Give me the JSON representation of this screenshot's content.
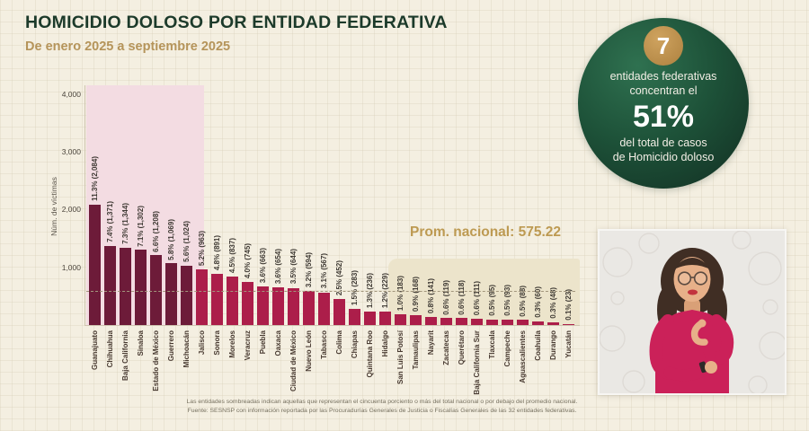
{
  "title": "HOMICIDIO DOLOSO POR ENTIDAD FEDERATIVA",
  "subtitle": "De enero 2025 a septiembre 2025",
  "avg_label": "Prom. nacional: 575.22",
  "badge": {
    "number": "7",
    "line1": "entidades federativas",
    "line2": "concentran el",
    "pct": "51%",
    "line3": "del total de casos",
    "line4": "de Homicidio doloso"
  },
  "yticks": [
    "4,000",
    "3,000",
    "2,000",
    "1,000"
  ],
  "footnote1": "Las entidades sombreadas indican aquellas que representan el cincuenta porciento o más del total nacional o por debajo del promedio nacional.",
  "footnote2": "Fuente: SESNSP con información reportada por las Procuradurías Generales de Justicia o Fiscalías Generales de las 32 entidades federativas.",
  "colors": {
    "bar_shaded": "#6d1b39",
    "bar_normal": "#ac1e4a",
    "shade_pink": "#f3dce2",
    "shade_beige": "#ece4cb",
    "title_green": "#1c3a2a",
    "gold": "#bd9a52",
    "badge_green_dark": "#122e22",
    "interpreter_magenta": "#cb2159"
  },
  "chart_data": {
    "type": "bar",
    "title": "Homicidio doloso por entidad federativa",
    "period": "enero 2025 a septiembre 2025",
    "ylabel": "Núm. de víctimas",
    "ylim": [
      0,
      4000
    ],
    "ytick_values": [
      4000,
      3000,
      2000,
      1000
    ],
    "national_average": 575.22,
    "shaded_top_count": 7,
    "categories": [
      "Guanajuato",
      "Chihuahua",
      "Baja California",
      "Sinaloa",
      "Estado de México",
      "Guerrero",
      "Michoacán",
      "Jalisco",
      "Sonora",
      "Morelos",
      "Veracruz",
      "Puebla",
      "Oaxaca",
      "Ciudad de México",
      "Nuevo León",
      "Tabasco",
      "Colima",
      "Chiapas",
      "Quintana Roo",
      "Hidalgo",
      "San Luis Potosí",
      "Tamaulipas",
      "Nayarit",
      "Zacatecas",
      "Querétaro",
      "Baja California Sur",
      "Tlaxcala",
      "Campeche",
      "Aguascalientes",
      "Coahuila",
      "Durango",
      "Yucatán"
    ],
    "values": [
      2084,
      1371,
      1344,
      1302,
      1208,
      1069,
      1024,
      963,
      891,
      837,
      745,
      663,
      654,
      644,
      594,
      567,
      452,
      283,
      236,
      229,
      183,
      168,
      141,
      119,
      118,
      111,
      95,
      93,
      88,
      60,
      48,
      23
    ],
    "percentages": [
      11.3,
      7.4,
      7.3,
      7.1,
      6.6,
      5.8,
      5.6,
      5.2,
      4.8,
      4.5,
      4.0,
      3.6,
      3.6,
      3.5,
      3.2,
      3.1,
      2.5,
      1.5,
      1.3,
      1.2,
      1.0,
      0.9,
      0.8,
      0.6,
      0.6,
      0.6,
      0.5,
      0.5,
      0.5,
      0.3,
      0.3,
      0.1
    ],
    "value_labels": [
      "11.3% (2,084)",
      "7.4% (1,371)",
      "7.3% (1,344)",
      "7.1% (1,302)",
      "6.6% (1,208)",
      "5.8% (1,069)",
      "5.6% (1,024)",
      "5.2% (963)",
      "4.8% (891)",
      "4.5% (837)",
      "4.0% (745)",
      "3.6% (663)",
      "3.6% (654)",
      "3.5% (644)",
      "3.2% (594)",
      "3.1% (567)",
      "2.5% (452)",
      "1.5% (283)",
      "1.3% (236)",
      "1.2% (229)",
      "1.0% (183)",
      "0.9% (168)",
      "0.8% (141)",
      "0.6% (119)",
      "0.6% (118)",
      "0.6% (111)",
      "0.5% (95)",
      "0.5% (93)",
      "0.5% (88)",
      "0.3% (60)",
      "0.3% (48)",
      "0.1% (23)"
    ]
  }
}
